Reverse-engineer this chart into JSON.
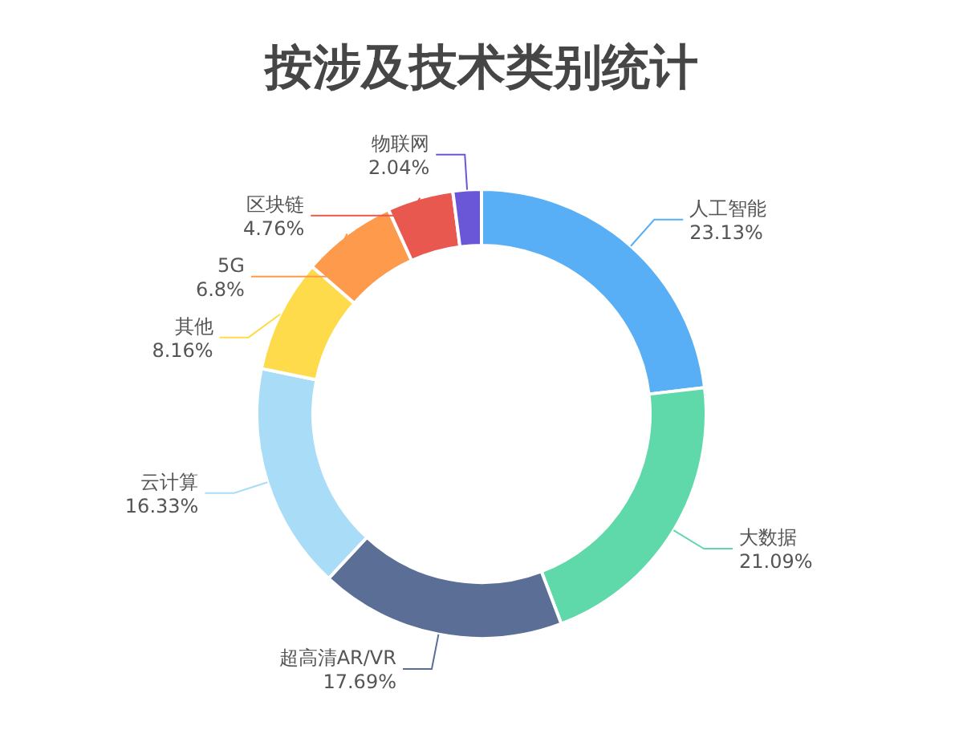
{
  "chart_data": {
    "type": "donut",
    "title": "按涉及技术类别统计",
    "categories": [
      "人工智能",
      "大数据",
      "超高清AR/VR",
      "云计算",
      "其他",
      "5G",
      "区块链",
      "物联网"
    ],
    "values": [
      23.13,
      21.09,
      17.69,
      16.33,
      8.16,
      6.8,
      4.76,
      2.04
    ],
    "value_labels": [
      "23.13%",
      "21.09%",
      "17.69%",
      "16.33%",
      "8.16%",
      "6.8%",
      "4.76%",
      "2.04%"
    ],
    "colors": [
      "#58aff5",
      "#5fd9a9",
      "#5a6e96",
      "#a9dcf7",
      "#fedb4a",
      "#fe9a4c",
      "#e8584f",
      "#6a57d8"
    ]
  }
}
